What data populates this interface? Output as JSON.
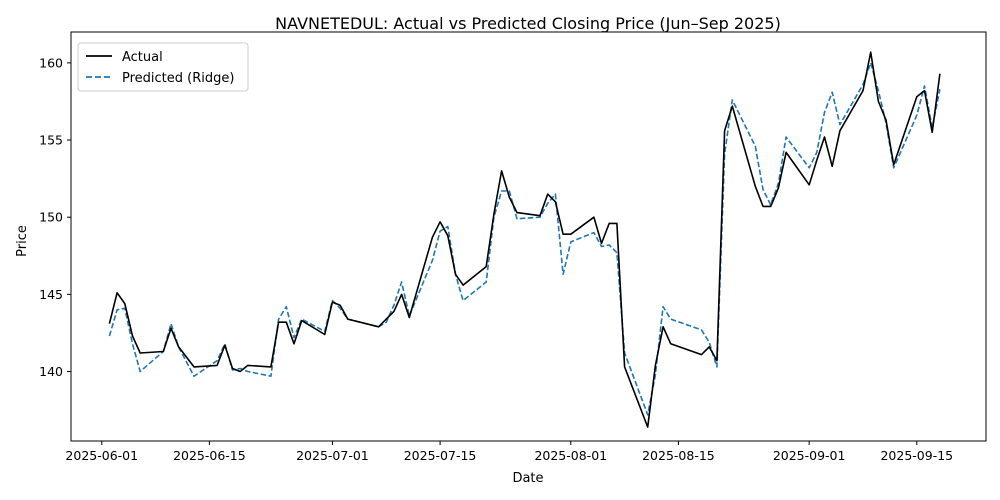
{
  "chart_data": {
    "type": "line",
    "title": "NAVNETEDUL: Actual vs Predicted Closing Price (Jun–Sep 2025)",
    "xlabel": "Date",
    "ylabel": "Price",
    "xlim": [
      "2025-05-28",
      "2025-09-24"
    ],
    "ylim": [
      135.5,
      162
    ],
    "x_ticks": [
      "2025-06-01",
      "2025-06-15",
      "2025-07-01",
      "2025-07-15",
      "2025-08-01",
      "2025-08-15",
      "2025-09-01",
      "2025-09-15"
    ],
    "y_ticks": [
      140,
      145,
      150,
      155,
      160
    ],
    "grid": false,
    "legend_position": "upper left",
    "colors": {
      "actual": "#000000",
      "predicted": "#1f77b4"
    },
    "series": [
      {
        "name": "Actual",
        "style": "solid",
        "points": [
          [
            "2025-06-02",
            143.1
          ],
          [
            "2025-06-03",
            145.1
          ],
          [
            "2025-06-04",
            144.4
          ],
          [
            "2025-06-05",
            142.3
          ],
          [
            "2025-06-06",
            141.2
          ],
          [
            "2025-06-09",
            141.3
          ],
          [
            "2025-06-10",
            142.8
          ],
          [
            "2025-06-11",
            141.6
          ],
          [
            "2025-06-13",
            140.3
          ],
          [
            "2025-06-16",
            140.4
          ],
          [
            "2025-06-17",
            141.7
          ],
          [
            "2025-06-18",
            140.2
          ],
          [
            "2025-06-19",
            140.0
          ],
          [
            "2025-06-20",
            140.4
          ],
          [
            "2025-06-23",
            140.3
          ],
          [
            "2025-06-24",
            143.2
          ],
          [
            "2025-06-25",
            143.2
          ],
          [
            "2025-06-26",
            141.8
          ],
          [
            "2025-06-27",
            143.3
          ],
          [
            "2025-06-30",
            142.4
          ],
          [
            "2025-07-01",
            144.5
          ],
          [
            "2025-07-02",
            144.3
          ],
          [
            "2025-07-03",
            143.4
          ],
          [
            "2025-07-07",
            142.9
          ],
          [
            "2025-07-08",
            143.4
          ],
          [
            "2025-07-09",
            143.9
          ],
          [
            "2025-07-10",
            145.0
          ],
          [
            "2025-07-11",
            143.5
          ],
          [
            "2025-07-14",
            148.7
          ],
          [
            "2025-07-15",
            149.7
          ],
          [
            "2025-07-16",
            148.8
          ],
          [
            "2025-07-17",
            146.3
          ],
          [
            "2025-07-18",
            145.6
          ],
          [
            "2025-07-21",
            146.8
          ],
          [
            "2025-07-22",
            150.2
          ],
          [
            "2025-07-23",
            153.0
          ],
          [
            "2025-07-24",
            151.3
          ],
          [
            "2025-07-25",
            150.3
          ],
          [
            "2025-07-28",
            150.1
          ],
          [
            "2025-07-29",
            151.5
          ],
          [
            "2025-07-30",
            151.0
          ],
          [
            "2025-07-31",
            148.9
          ],
          [
            "2025-08-01",
            148.9
          ],
          [
            "2025-08-04",
            150.0
          ],
          [
            "2025-08-05",
            148.3
          ],
          [
            "2025-08-06",
            149.6
          ],
          [
            "2025-08-07",
            149.6
          ],
          [
            "2025-08-08",
            140.3
          ],
          [
            "2025-08-11",
            136.4
          ],
          [
            "2025-08-12",
            140.4
          ],
          [
            "2025-08-13",
            142.9
          ],
          [
            "2025-08-14",
            141.8
          ],
          [
            "2025-08-18",
            141.1
          ],
          [
            "2025-08-19",
            141.6
          ],
          [
            "2025-08-20",
            140.7
          ],
          [
            "2025-08-21",
            155.6
          ],
          [
            "2025-08-22",
            157.2
          ],
          [
            "2025-08-25",
            152.0
          ],
          [
            "2025-08-26",
            150.7
          ],
          [
            "2025-08-27",
            150.7
          ],
          [
            "2025-08-28",
            151.9
          ],
          [
            "2025-08-29",
            154.2
          ],
          [
            "2025-09-01",
            152.1
          ],
          [
            "2025-09-02",
            153.7
          ],
          [
            "2025-09-03",
            155.2
          ],
          [
            "2025-09-04",
            153.3
          ],
          [
            "2025-09-05",
            155.6
          ],
          [
            "2025-09-08",
            158.2
          ],
          [
            "2025-09-09",
            160.7
          ],
          [
            "2025-09-10",
            157.5
          ],
          [
            "2025-09-11",
            156.3
          ],
          [
            "2025-09-12",
            153.4
          ],
          [
            "2025-09-15",
            157.8
          ],
          [
            "2025-09-16",
            158.2
          ],
          [
            "2025-09-17",
            155.5
          ],
          [
            "2025-09-18",
            159.3
          ]
        ]
      },
      {
        "name": "Predicted (Ridge)",
        "style": "dashed",
        "points": [
          [
            "2025-06-02",
            142.3
          ],
          [
            "2025-06-03",
            144.0
          ],
          [
            "2025-06-04",
            144.1
          ],
          [
            "2025-06-05",
            141.8
          ],
          [
            "2025-06-06",
            140.0
          ],
          [
            "2025-06-09",
            141.3
          ],
          [
            "2025-06-10",
            143.1
          ],
          [
            "2025-06-11",
            141.6
          ],
          [
            "2025-06-13",
            139.7
          ],
          [
            "2025-06-16",
            140.7
          ],
          [
            "2025-06-17",
            141.8
          ],
          [
            "2025-06-18",
            140.1
          ],
          [
            "2025-06-19",
            140.2
          ],
          [
            "2025-06-20",
            140.0
          ],
          [
            "2025-06-23",
            139.7
          ],
          [
            "2025-06-24",
            143.4
          ],
          [
            "2025-06-25",
            144.2
          ],
          [
            "2025-06-26",
            142.2
          ],
          [
            "2025-06-27",
            143.4
          ],
          [
            "2025-06-30",
            142.6
          ],
          [
            "2025-07-01",
            144.6
          ],
          [
            "2025-07-02",
            144.1
          ],
          [
            "2025-07-03",
            143.4
          ],
          [
            "2025-07-07",
            142.9
          ],
          [
            "2025-07-08",
            143.2
          ],
          [
            "2025-07-09",
            144.3
          ],
          [
            "2025-07-10",
            145.8
          ],
          [
            "2025-07-11",
            143.6
          ],
          [
            "2025-07-14",
            147.2
          ],
          [
            "2025-07-15",
            149.1
          ],
          [
            "2025-07-16",
            149.4
          ],
          [
            "2025-07-17",
            146.3
          ],
          [
            "2025-07-18",
            144.6
          ],
          [
            "2025-07-21",
            145.8
          ],
          [
            "2025-07-22",
            150.0
          ],
          [
            "2025-07-23",
            151.7
          ],
          [
            "2025-07-24",
            151.7
          ],
          [
            "2025-07-25",
            149.9
          ],
          [
            "2025-07-28",
            150.0
          ],
          [
            "2025-07-29",
            150.9
          ],
          [
            "2025-07-30",
            151.5
          ],
          [
            "2025-07-31",
            146.3
          ],
          [
            "2025-08-01",
            148.4
          ],
          [
            "2025-08-04",
            149.0
          ],
          [
            "2025-08-05",
            148.1
          ],
          [
            "2025-08-06",
            148.2
          ],
          [
            "2025-08-07",
            147.7
          ],
          [
            "2025-08-08",
            141.2
          ],
          [
            "2025-08-11",
            137.2
          ],
          [
            "2025-08-12",
            139.8
          ],
          [
            "2025-08-13",
            144.2
          ],
          [
            "2025-08-14",
            143.4
          ],
          [
            "2025-08-18",
            142.7
          ],
          [
            "2025-08-19",
            141.9
          ],
          [
            "2025-08-20",
            140.3
          ],
          [
            "2025-08-21",
            154.1
          ],
          [
            "2025-08-22",
            157.6
          ],
          [
            "2025-08-25",
            154.6
          ],
          [
            "2025-08-26",
            151.8
          ],
          [
            "2025-08-27",
            150.8
          ],
          [
            "2025-08-28",
            152.2
          ],
          [
            "2025-08-29",
            155.2
          ],
          [
            "2025-09-01",
            153.2
          ],
          [
            "2025-09-02",
            154.2
          ],
          [
            "2025-09-03",
            156.8
          ],
          [
            "2025-09-04",
            158.1
          ],
          [
            "2025-09-05",
            156.0
          ],
          [
            "2025-09-08",
            158.6
          ],
          [
            "2025-09-09",
            160.0
          ],
          [
            "2025-09-10",
            158.2
          ],
          [
            "2025-09-11",
            156.1
          ],
          [
            "2025-09-12",
            153.2
          ],
          [
            "2025-09-15",
            156.6
          ],
          [
            "2025-09-16",
            158.5
          ],
          [
            "2025-09-17",
            155.8
          ],
          [
            "2025-09-18",
            158.3
          ]
        ]
      }
    ]
  }
}
